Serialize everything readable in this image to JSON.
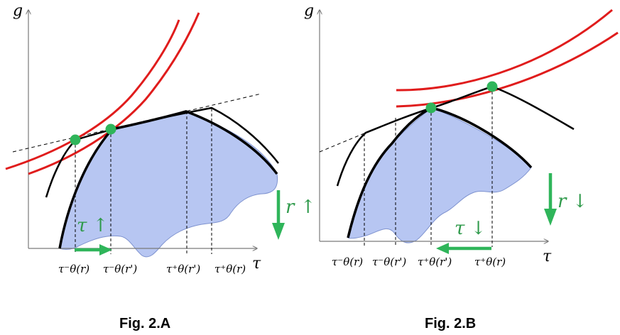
{
  "colors": {
    "axis": "#7a7a7a",
    "curve": "#000000",
    "indifference": "#e01c1c",
    "dot": "#2fb55a",
    "region_fill": "#b7c6f2",
    "region_stroke": "#7f93cf",
    "arrow": "#2fb55a",
    "label": "#2f9a4b"
  },
  "figA": {
    "caption": "Fig. 2.A",
    "y_axis_label": "g",
    "x_axis_label": "τ",
    "ticks": {
      "tau_minus_r": "τ⁻θ(r)",
      "tau_minus_rp": "τ⁻θ(r')",
      "tau_plus_rp": "τ⁺θ(r')",
      "tau_plus_r": "τ⁺θ(r)"
    },
    "tau_arrow_label": "τ ↑",
    "r_arrow_label": "r ↑"
  },
  "figB": {
    "caption": "Fig. 2.B",
    "y_axis_label": "g",
    "x_axis_label": "τ",
    "ticks": {
      "tau_minus_r": "τ⁻θ(r)",
      "tau_minus_rp": "τ⁻θ(r')",
      "tau_plus_rp": "τ⁺θ(r')",
      "tau_plus_r": "τ⁺θ(r)"
    },
    "tau_arrow_label": "τ ↓",
    "r_arrow_label": "r ↓"
  }
}
